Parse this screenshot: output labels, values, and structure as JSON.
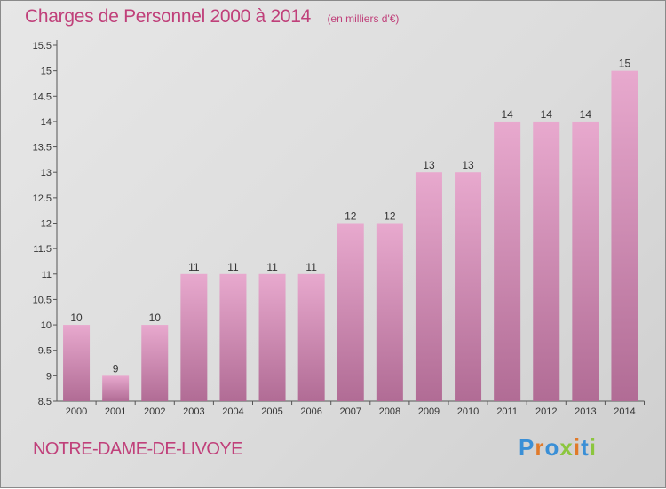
{
  "title": "Charges de Personnel 2000 à 2014",
  "subtitle": "(en milliers d'€)",
  "place": "NOTRE-DAME-DE-LIVOYE",
  "logo": {
    "text": "Proxiti",
    "colors": [
      "#3a8fd6",
      "#e07a2a",
      "#3a8fd6",
      "#8cc63e",
      "#e07a2a",
      "#3a8fd6",
      "#8cc63e"
    ]
  },
  "colors": {
    "bar_top": "#e8a9ce",
    "bar_bottom": "#b16c95",
    "accent": "#c0407a"
  },
  "chart_data": {
    "type": "bar",
    "categories": [
      "2000",
      "2001",
      "2002",
      "2003",
      "2004",
      "2005",
      "2006",
      "2007",
      "2008",
      "2009",
      "2010",
      "2011",
      "2012",
      "2013",
      "2014"
    ],
    "values": [
      10,
      9,
      10,
      11,
      11,
      11,
      11,
      12,
      12,
      13,
      13,
      14,
      14,
      14,
      15
    ],
    "data_labels": [
      "10",
      "9",
      "10",
      "11",
      "11",
      "11",
      "11",
      "12",
      "12",
      "13",
      "13",
      "14",
      "14",
      "14",
      "15"
    ],
    "ylim": [
      8.5,
      15.5
    ],
    "yticks": [
      8.5,
      9,
      9.5,
      10,
      10.5,
      11,
      11.5,
      12,
      12.5,
      13,
      13.5,
      14,
      14.5,
      15,
      15.5
    ],
    "ytick_labels": [
      "8.5",
      "9",
      "9.5",
      "10",
      "10.5",
      "11",
      "11.5",
      "12",
      "12.5",
      "13",
      "13.5",
      "14",
      "14.5",
      "15",
      "15.5"
    ],
    "grid": false,
    "legend": "none"
  }
}
